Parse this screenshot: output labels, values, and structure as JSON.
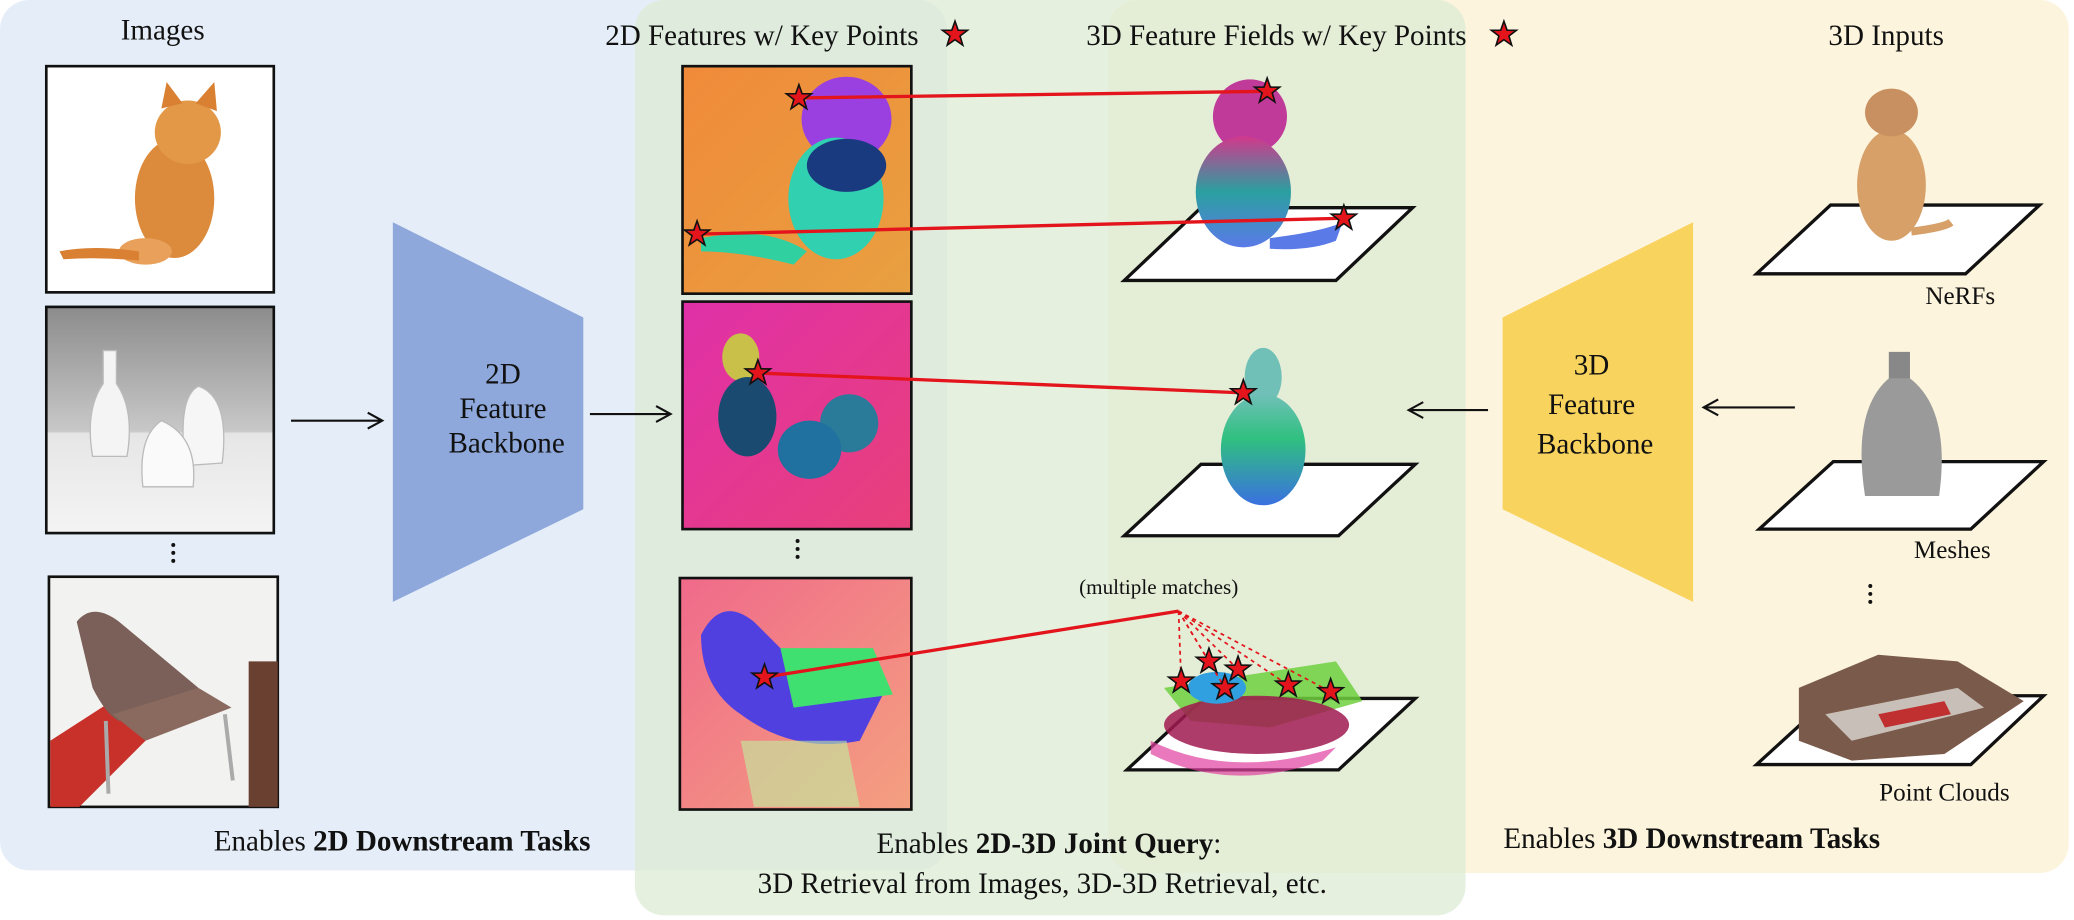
{
  "columns": {
    "images": "Images",
    "features_2d": "2D Features w/ Key Points",
    "fields_3d": "3D Feature Fields w/ Key Points",
    "inputs_3d": "3D Inputs"
  },
  "backbones": {
    "backbone_2d": [
      "2D",
      "Feature",
      "Backbone"
    ],
    "backbone_3d": [
      "3D",
      "Feature",
      "Backbone"
    ]
  },
  "input_labels": [
    "NeRFs",
    "Meshes",
    "Point Clouds"
  ],
  "annotation": "(multiple matches)",
  "footers": {
    "left": {
      "prefix": "Enables ",
      "bold": "2D Downstream Tasks"
    },
    "middle": {
      "prefix": "Enables ",
      "bold": "2D-3D Joint Query",
      "suffix": ":",
      "line2": "3D Retrieval from Images, 3D-3D Retrieval, etc."
    },
    "right": {
      "prefix": "Enables ",
      "bold": "3D Downstream Tasks"
    }
  }
}
